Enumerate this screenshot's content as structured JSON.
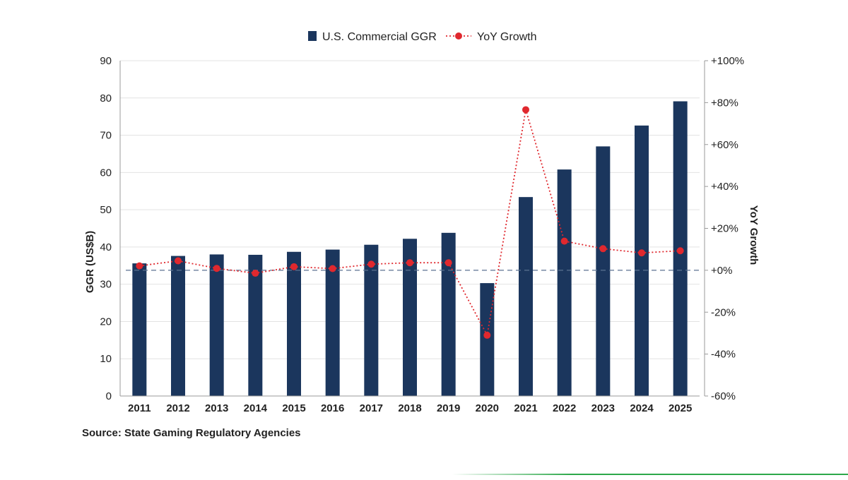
{
  "chart_data": {
    "type": "bar",
    "title": "",
    "categories": [
      "2011",
      "2012",
      "2013",
      "2014",
      "2015",
      "2016",
      "2017",
      "2018",
      "2019",
      "2020",
      "2021",
      "2022",
      "2023",
      "2024",
      "2025"
    ],
    "series": [
      {
        "name": "U.S. Commercial GGR",
        "type": "bar",
        "axis": "left",
        "color": "#1b365d",
        "values": [
          35.6,
          37.6,
          38.0,
          37.9,
          38.7,
          39.3,
          40.6,
          42.2,
          43.8,
          30.3,
          53.4,
          60.8,
          67.0,
          72.6,
          79.1
        ]
      },
      {
        "name": "YoY Growth",
        "type": "line",
        "axis": "right",
        "color": "#e0282e",
        "line_style": "dotted",
        "marker": "circle",
        "values": [
          2.1,
          4.5,
          0.9,
          -1.4,
          1.7,
          0.8,
          2.9,
          3.6,
          3.6,
          -31.0,
          76.6,
          13.9,
          10.3,
          8.3,
          9.3
        ]
      }
    ],
    "ylabel": "GGR (US$B)",
    "ylim": [
      0,
      90
    ],
    "yticks": [
      0,
      10,
      20,
      30,
      40,
      50,
      60,
      70,
      80,
      90
    ],
    "y2label": "YoY Growth",
    "y2lim": [
      -60,
      100
    ],
    "y2ticks": [
      "-60%",
      "-40%",
      "-20%",
      "+0%",
      "+20%",
      "+40%",
      "+60%",
      "+80%",
      "+100%"
    ],
    "y2tick_values": [
      -60,
      -40,
      -20,
      0,
      20,
      40,
      60,
      80,
      100
    ],
    "reference_line": {
      "y2": 0,
      "style": "dashed",
      "color": "#5b7291"
    },
    "grid": true,
    "legend_position": "top-center",
    "source": "Source: State Gaming Regulatory Agencies"
  },
  "theme": {
    "bar_color": "#1b365d",
    "line_color": "#e0282e",
    "grid_color": "#e3e3e3",
    "axis_color": "#9a9a9a",
    "accent_green": "#2da84a"
  }
}
